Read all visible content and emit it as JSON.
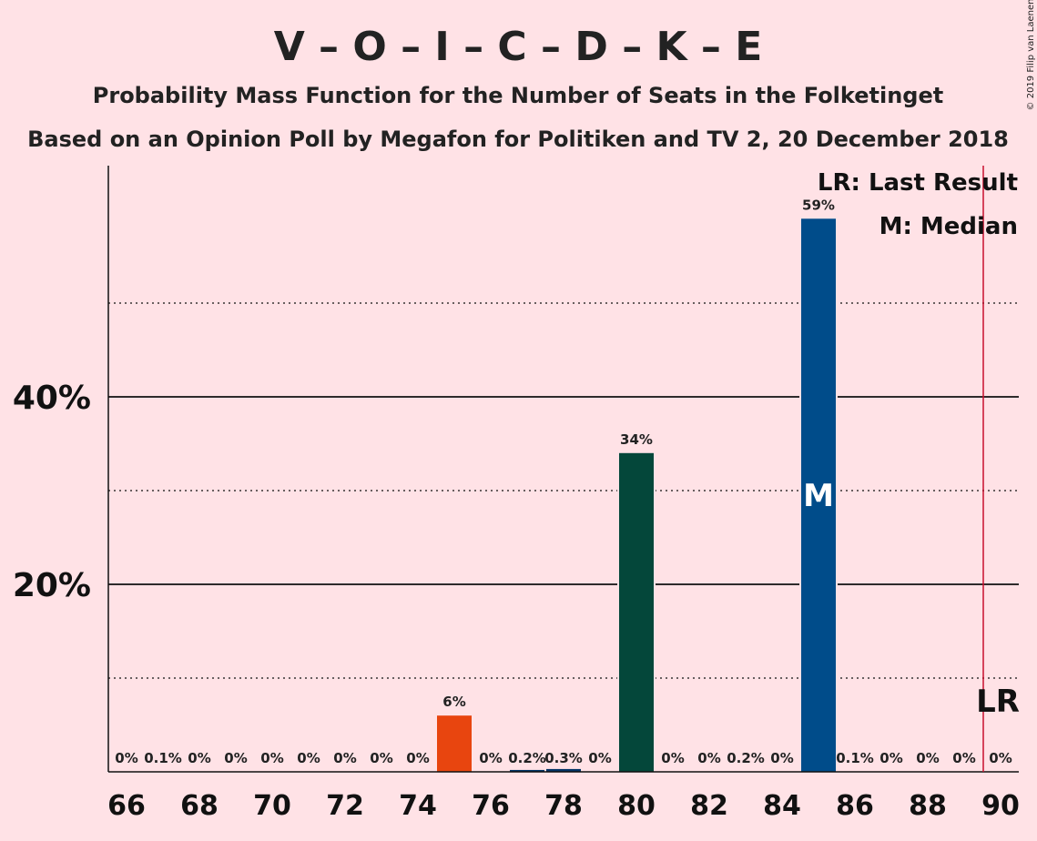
{
  "title": "V – O – I – C – D – K – E",
  "subtitle1": "Probability Mass Function for the Number of Seats in the Folketinget",
  "subtitle2": "Based on an Opinion Poll by Megafon for Politiken and TV 2, 20 December 2018",
  "copyright": "© 2019 Filip van Laenen",
  "legend": {
    "lr": "LR: Last Result",
    "m": "M: Median"
  },
  "median_marker": "M",
  "last_result_marker": "LR",
  "colors": {
    "background": "#FFE2E6",
    "orange": "#E8450F",
    "navy": "#003366",
    "darkgreen": "#04473A",
    "blue": "#004C8A",
    "last_result_line": "#C8102E"
  },
  "chart_data": {
    "type": "bar",
    "x": [
      66,
      67,
      68,
      69,
      70,
      71,
      72,
      73,
      74,
      75,
      76,
      77,
      78,
      79,
      80,
      81,
      82,
      83,
      84,
      85,
      86,
      87,
      88,
      89,
      90
    ],
    "values": [
      0,
      0.1,
      0,
      0,
      0,
      0,
      0,
      0,
      0,
      6,
      0,
      0.2,
      0.3,
      0,
      34,
      0,
      0,
      0.2,
      0,
      59,
      0.1,
      0,
      0,
      0,
      0
    ],
    "labels": [
      "0%",
      "0.1%",
      "0%",
      "0%",
      "0%",
      "0%",
      "0%",
      "0%",
      "0%",
      "6%",
      "0%",
      "0.2%",
      "0.3%",
      "0%",
      "34%",
      "0%",
      "0%",
      "0.2%",
      "0%",
      "59%",
      "0.1%",
      "0%",
      "0%",
      "0%",
      "0%"
    ],
    "bar_colors": {
      "75": "orange",
      "77": "navy",
      "78": "navy",
      "80": "darkgreen",
      "85": "blue"
    },
    "xticks": [
      66,
      68,
      70,
      72,
      74,
      76,
      78,
      80,
      82,
      84,
      86,
      88,
      90
    ],
    "yticks": [
      {
        "value": 20,
        "label": "20%"
      },
      {
        "value": 40,
        "label": "40%"
      }
    ],
    "minor_gridlines": [
      10,
      30,
      50
    ],
    "ylim": [
      0,
      64
    ],
    "median": 85,
    "last_result": 90,
    "grid": true,
    "legend_position": "top-right"
  }
}
